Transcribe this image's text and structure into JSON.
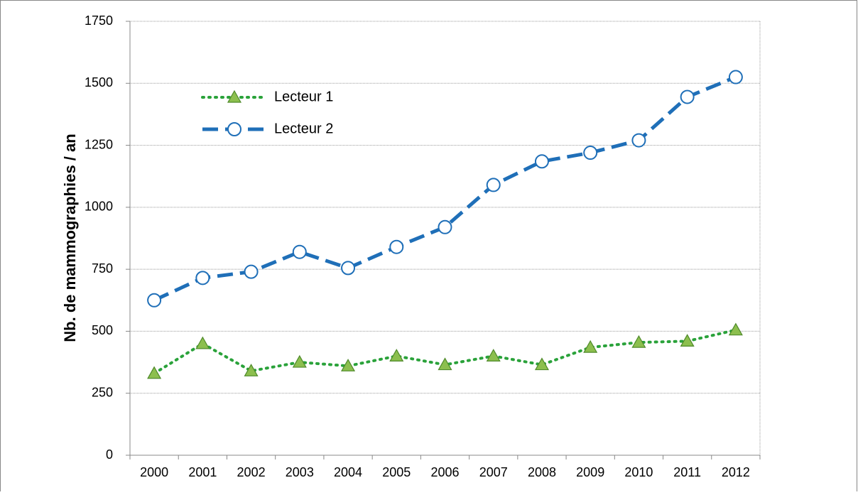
{
  "chart_data": {
    "type": "line",
    "y_label": "Nb. de mammographies / an",
    "categories": [
      "2000",
      "2001",
      "2002",
      "2003",
      "2004",
      "2005",
      "2006",
      "2007",
      "2008",
      "2009",
      "2010",
      "2011",
      "2012"
    ],
    "series": [
      {
        "name": "Lecteur 1",
        "color": "#2aa23a",
        "marker_color": "#8cbf4e",
        "values": [
          330,
          450,
          340,
          375,
          360,
          400,
          365,
          400,
          365,
          435,
          455,
          460,
          505
        ]
      },
      {
        "name": "Lecteur 2",
        "color": "#1f6fb8",
        "marker_color": "#ffffff",
        "values": [
          625,
          715,
          740,
          820,
          755,
          840,
          920,
          1090,
          1185,
          1220,
          1270,
          1445,
          1525
        ]
      }
    ],
    "ylim": [
      0,
      1750
    ],
    "yticks": [
      0,
      250,
      500,
      750,
      1000,
      1250,
      1500,
      1750
    ],
    "grid": true
  }
}
